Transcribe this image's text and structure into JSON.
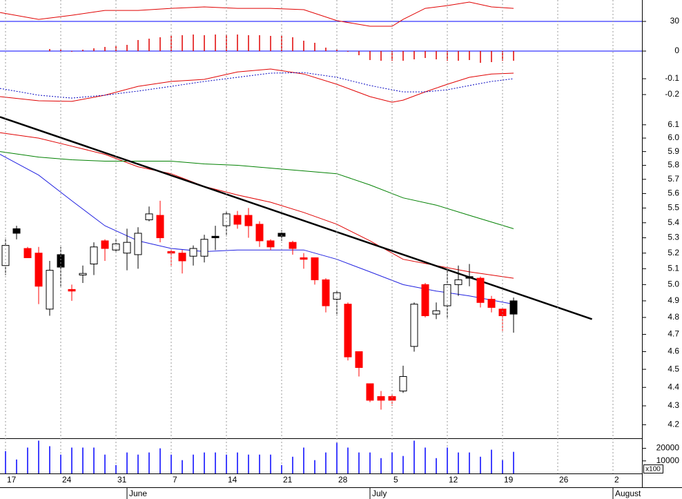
{
  "chart_data": [
    {
      "type": "line",
      "xlim": [
        -0.5,
        57.625
      ],
      "ylim": [
        20,
        41.5
      ],
      "yticks": [
        30
      ],
      "grid": true,
      "grid_color": "#0000ff",
      "series": [
        {
          "color": "#e00000",
          "x": [
            -0.5,
            3,
            6,
            9,
            12,
            15,
            18,
            21,
            24,
            27,
            30,
            33,
            35,
            36,
            38,
            40,
            42,
            44,
            46
          ],
          "values": [
            34.8,
            31.1,
            33.3,
            35.9,
            35.9,
            37.0,
            37.8,
            37.0,
            37.0,
            36.3,
            30.4,
            27.4,
            27.4,
            31.1,
            37.0,
            38.5,
            40.4,
            37.8,
            37.0
          ]
        }
      ]
    },
    {
      "type": "bar",
      "xlim": [
        -0.5,
        57.625
      ],
      "ylim": [
        -0.036,
        0.05
      ],
      "yticks": [
        0
      ],
      "grid": true,
      "grid_color": "#0000ff",
      "color": "#e00000",
      "x": [
        0,
        1,
        2,
        3,
        4,
        5,
        6,
        7,
        8,
        9,
        10,
        11,
        12,
        13,
        14,
        15,
        16,
        17,
        18,
        19,
        20,
        21,
        22,
        23,
        24,
        25,
        26,
        27,
        28,
        29,
        30,
        31,
        32,
        33,
        34,
        35,
        36,
        37,
        38,
        39,
        40,
        41,
        42,
        43,
        44,
        45,
        46
      ],
      "values": [
        0,
        0,
        0,
        0,
        0.006,
        0.004,
        -0.002,
        0.004,
        0.008,
        0.012,
        0.014,
        0.018,
        0.032,
        0.036,
        0.04,
        0.044,
        0.046,
        0.048,
        0.046,
        0.048,
        0.048,
        0.048,
        0.046,
        0.046,
        0.044,
        0.044,
        0.04,
        0.03,
        0.024,
        0.01,
        0.004,
        -0.002,
        -0.012,
        -0.026,
        -0.028,
        -0.028,
        -0.028,
        -0.024,
        -0.02,
        -0.024,
        -0.028,
        -0.028,
        -0.026,
        -0.034,
        -0.032,
        -0.028,
        -0.028
      ]
    },
    {
      "type": "line",
      "xlim": [
        -0.5,
        57.625
      ],
      "ylim": [
        -0.3,
        -0.004
      ],
      "yticks": [
        -0.1,
        -0.2
      ],
      "series": [
        {
          "color": "#e00000",
          "x": [
            -0.5,
            3,
            6,
            9,
            12,
            15,
            18,
            21,
            24,
            27,
            30,
            33,
            35,
            36,
            38,
            40,
            42,
            44,
            46
          ],
          "values": [
            -0.213,
            -0.239,
            -0.243,
            -0.204,
            -0.148,
            -0.117,
            -0.104,
            -0.057,
            -0.039,
            -0.07,
            -0.135,
            -0.213,
            -0.248,
            -0.235,
            -0.183,
            -0.135,
            -0.091,
            -0.07,
            -0.065
          ]
        },
        {
          "color": "#0000c0",
          "style": "dotted",
          "x": [
            -0.5,
            3,
            6,
            9,
            12,
            15,
            18,
            21,
            24,
            27,
            30,
            33,
            35,
            36,
            38,
            40,
            42,
            44,
            46
          ],
          "values": [
            -0.161,
            -0.204,
            -0.222,
            -0.204,
            -0.178,
            -0.148,
            -0.117,
            -0.091,
            -0.065,
            -0.061,
            -0.091,
            -0.143,
            -0.17,
            -0.183,
            -0.183,
            -0.17,
            -0.143,
            -0.117,
            -0.1
          ]
        }
      ]
    },
    {
      "type": "candlestick",
      "xlim": [
        -0.5,
        57.625
      ],
      "ylim": [
        4.13,
        6.21
      ],
      "log_scale": true,
      "yticks": [
        6.1,
        {
          "value": 6,
          "label": "6.0"
        },
        5.9,
        5.8,
        5.7,
        5.6,
        5.5,
        5.4,
        5.3,
        5.2,
        5.1,
        {
          "value": 5,
          "label": "5.0"
        },
        4.9,
        4.8,
        4.7,
        4.6,
        4.5,
        4.4,
        4.3,
        4.2
      ],
      "x": [
        0,
        1,
        2,
        3,
        4,
        5,
        6,
        7,
        8,
        9,
        10,
        11,
        12,
        13,
        14,
        15,
        16,
        17,
        18,
        19,
        20,
        21,
        22,
        23,
        24,
        25,
        26,
        27,
        28,
        29,
        30,
        31,
        32,
        33,
        34,
        35,
        36,
        37,
        38,
        39,
        40,
        41,
        42,
        43,
        44,
        45,
        46
      ],
      "open": [
        5.12,
        5.36,
        5.23,
        5.2,
        4.85,
        5.19,
        4.97,
        5.06,
        5.13,
        5.28,
        5.22,
        5.2,
        5.19,
        5.42,
        5.45,
        5.21,
        5.2,
        5.18,
        5.18,
        5.31,
        5.38,
        5.45,
        5.45,
        5.39,
        5.28,
        5.33,
        5.27,
        5.17,
        5.17,
        5.03,
        4.91,
        4.88,
        4.6,
        4.42,
        4.35,
        4.35,
        4.38,
        4.63,
        5.0,
        4.82,
        4.87,
        5.0,
        5.05,
        5.04,
        4.91,
        4.85,
        4.82
      ],
      "high": [
        5.3,
        5.38,
        5.24,
        5.24,
        5.15,
        5.24,
        5.0,
        5.12,
        5.27,
        5.29,
        5.29,
        5.36,
        5.37,
        5.51,
        5.55,
        5.22,
        5.22,
        5.25,
        5.32,
        5.38,
        5.48,
        5.48,
        5.5,
        5.41,
        5.29,
        5.35,
        5.28,
        5.2,
        5.17,
        5.04,
        4.96,
        4.89,
        4.6,
        4.42,
        4.38,
        4.36,
        4.52,
        4.89,
        5.01,
        4.89,
        5.1,
        5.12,
        5.13,
        5.05,
        4.93,
        4.86,
        4.92
      ],
      "low": [
        5.06,
        5.29,
        5.17,
        4.88,
        4.81,
        4.99,
        4.9,
        5.01,
        5.06,
        5.15,
        5.21,
        5.09,
        5.1,
        5.41,
        5.27,
        5.12,
        5.07,
        5.12,
        5.14,
        5.22,
        5.31,
        5.36,
        5.3,
        5.24,
        5.22,
        5.28,
        5.19,
        5.1,
        5.0,
        4.83,
        4.81,
        4.55,
        4.46,
        4.32,
        4.28,
        4.3,
        4.37,
        4.6,
        4.8,
        4.79,
        4.79,
        4.93,
        4.99,
        4.86,
        4.83,
        4.72,
        4.71
      ],
      "close": [
        5.25,
        5.33,
        5.17,
        4.99,
        5.09,
        5.11,
        4.96,
        5.07,
        5.24,
        5.23,
        5.26,
        5.27,
        5.33,
        5.46,
        5.3,
        5.2,
        5.15,
        5.23,
        5.29,
        5.3,
        5.46,
        5.39,
        5.38,
        5.28,
        5.24,
        5.31,
        5.23,
        5.16,
        5.03,
        4.87,
        4.95,
        4.57,
        4.51,
        4.33,
        4.33,
        4.33,
        4.46,
        4.88,
        4.81,
        4.84,
        5.0,
        5.03,
        5.04,
        4.89,
        4.86,
        4.81,
        4.9
      ],
      "fills": [
        "#ffffff",
        "#000000",
        "#ff0000",
        "#ff0000",
        "#ffffff",
        "#000000",
        "#ff0000",
        "#ffffff",
        "#ffffff",
        "#ff0000",
        "#ffffff",
        "#ffffff",
        "#ffffff",
        "#ffffff",
        "#ff0000",
        "#ff0000",
        "#ff0000",
        "#ffffff",
        "#ffffff",
        "#000000",
        "#ffffff",
        "#ff0000",
        "#ff0000",
        "#ff0000",
        "#ff0000",
        "#000000",
        "#ff0000",
        "#ff0000",
        "#ff0000",
        "#ff0000",
        "#ffffff",
        "#ff0000",
        "#ff0000",
        "#ff0000",
        "#ff0000",
        "#ff0000",
        "#ffffff",
        "#ffffff",
        "#ff0000",
        "#ffffff",
        "#ffffff",
        "#ffffff",
        "#000000",
        "#ff0000",
        "#ff0000",
        "#ff0000",
        "#000000"
      ],
      "series": [
        {
          "color": "#2020e0",
          "x": [
            -0.5,
            3,
            6,
            9,
            12,
            15,
            18,
            21,
            24,
            27,
            30,
            33,
            36,
            39,
            42,
            46
          ],
          "values": [
            5.88,
            5.73,
            5.55,
            5.38,
            5.28,
            5.23,
            5.21,
            5.22,
            5.22,
            5.22,
            5.16,
            5.08,
            5.0,
            4.96,
            4.93,
            4.88
          ]
        },
        {
          "color": "#e00000",
          "x": [
            -0.5,
            3,
            6,
            9,
            12,
            15,
            18,
            21,
            24,
            27,
            30,
            33,
            36,
            39,
            42,
            46
          ],
          "values": [
            6.04,
            6.0,
            5.94,
            5.88,
            5.79,
            5.74,
            5.65,
            5.59,
            5.54,
            5.47,
            5.39,
            5.28,
            5.16,
            5.12,
            5.08,
            5.04
          ]
        },
        {
          "color": "#008000",
          "x": [
            -0.5,
            3,
            6,
            9,
            12,
            15,
            18,
            21,
            24,
            27,
            30,
            33,
            36,
            39,
            42,
            46
          ],
          "values": [
            5.9,
            5.86,
            5.84,
            5.83,
            5.83,
            5.83,
            5.81,
            5.8,
            5.78,
            5.76,
            5.74,
            5.66,
            5.57,
            5.52,
            5.45,
            5.36
          ]
        },
        {
          "color": "#000000",
          "width": 2.5,
          "x": [
            -0.5,
            53.1
          ],
          "values": [
            6.16,
            4.79
          ]
        }
      ]
    },
    {
      "type": "bar",
      "xlim": [
        -0.5,
        57.625
      ],
      "ylim": [
        0,
        28000
      ],
      "yticks": [
        20000,
        10000
      ],
      "color": "#0000ff",
      "unit_label": "x100",
      "x": [
        0,
        1,
        2,
        3,
        4,
        5,
        6,
        7,
        8,
        9,
        10,
        11,
        12,
        13,
        14,
        15,
        16,
        17,
        18,
        19,
        20,
        21,
        22,
        23,
        24,
        25,
        26,
        27,
        28,
        29,
        30,
        31,
        32,
        33,
        34,
        35,
        36,
        37,
        38,
        39,
        40,
        41,
        42,
        43,
        44,
        45,
        46
      ],
      "values": [
        17800,
        11100,
        20600,
        26100,
        21700,
        15000,
        20600,
        20600,
        20600,
        15000,
        6700,
        16700,
        15000,
        16700,
        20000,
        15000,
        10600,
        15000,
        16700,
        16700,
        15000,
        16700,
        15000,
        15000,
        15000,
        6700,
        13300,
        20600,
        10600,
        16700,
        24400,
        20600,
        16700,
        16700,
        12200,
        16700,
        13900,
        26100,
        20600,
        12200,
        20600,
        16700,
        16700,
        13300,
        18900,
        10600,
        17200
      ],
      "xticks": [
        {
          "value": 0,
          "label": "17"
        },
        {
          "value": 5,
          "label": "24"
        },
        {
          "value": 10,
          "label": "31"
        },
        {
          "value": 15,
          "label": "7"
        },
        {
          "value": 20,
          "label": "14"
        },
        {
          "value": 25,
          "label": "21"
        },
        {
          "value": 30,
          "label": "28"
        },
        {
          "value": 35,
          "label": "5"
        },
        {
          "value": 40,
          "label": "12"
        },
        {
          "value": 45,
          "label": "19"
        },
        {
          "value": 50,
          "label": "26"
        },
        {
          "value": 55,
          "label": "2"
        }
      ],
      "month_ticks": [
        {
          "value": 11,
          "label": "June"
        },
        {
          "value": 33,
          "label": "July"
        },
        {
          "value": 55,
          "label": "August"
        }
      ]
    }
  ]
}
